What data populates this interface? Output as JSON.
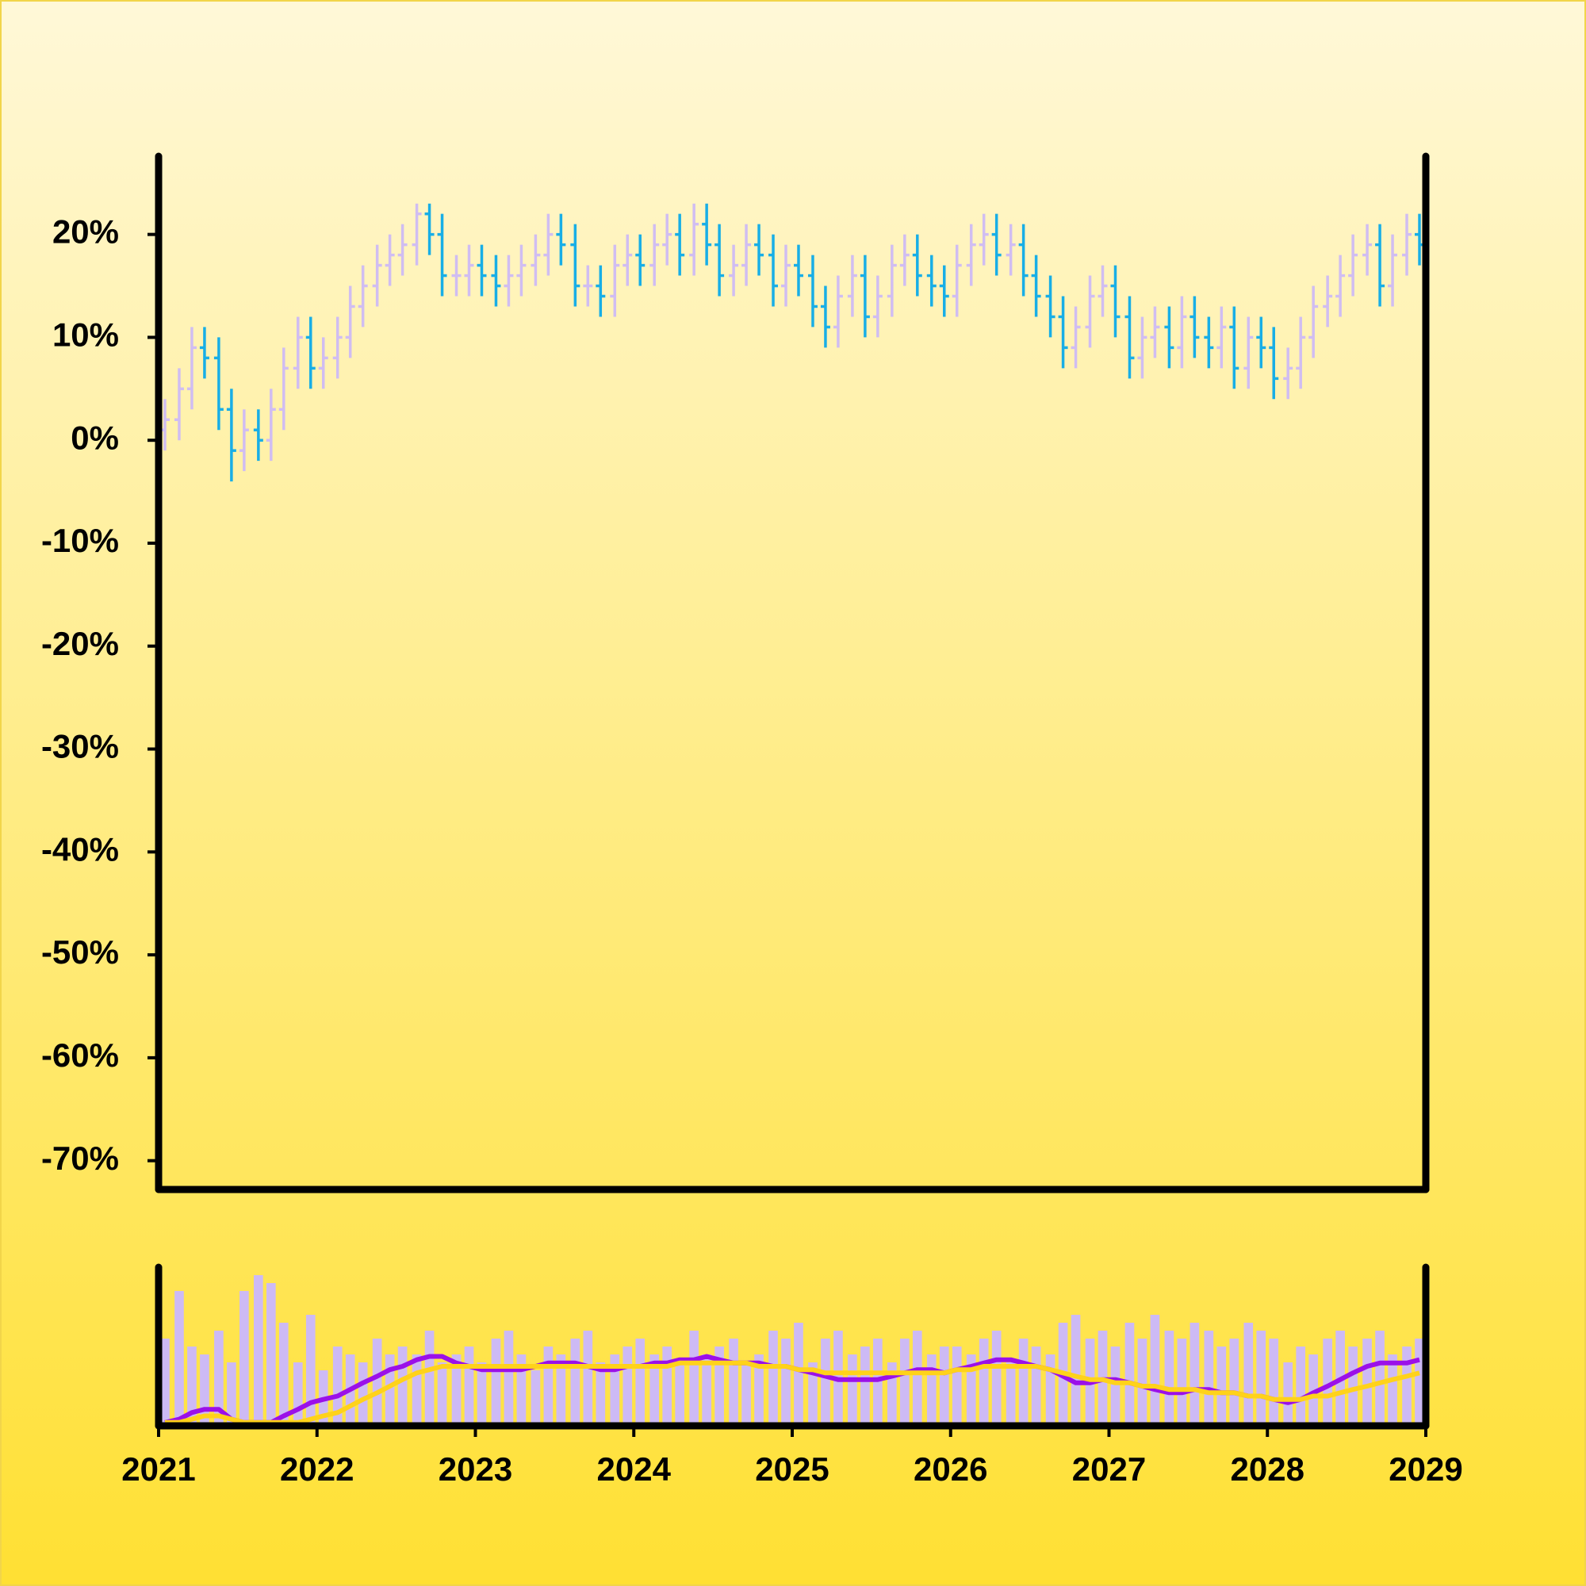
{
  "chart_data": {
    "type": "ohlc",
    "x": [
      2021.04,
      2021.13,
      2021.21,
      2021.29,
      2021.38,
      2021.46,
      2021.54,
      2021.63,
      2021.71,
      2021.79,
      2021.88,
      2021.96,
      2022.04,
      2022.13,
      2022.21,
      2022.29,
      2022.38,
      2022.46,
      2022.54,
      2022.63,
      2022.71,
      2022.79,
      2022.88,
      2022.96,
      2023.04,
      2023.13,
      2023.21,
      2023.29,
      2023.38,
      2023.46,
      2023.54,
      2023.63,
      2023.71,
      2023.79,
      2023.88,
      2023.96,
      2024.04,
      2024.13,
      2024.21,
      2024.29,
      2024.38,
      2024.46,
      2024.54,
      2024.63,
      2024.71,
      2024.79,
      2024.88,
      2024.96,
      2025.04,
      2025.13,
      2025.21,
      2025.29,
      2025.38,
      2025.46,
      2025.54,
      2025.63,
      2025.71,
      2025.79,
      2025.88,
      2025.96,
      2026.04,
      2026.13,
      2026.21,
      2026.29,
      2026.38,
      2026.46,
      2026.54,
      2026.63,
      2026.71,
      2026.79,
      2026.88,
      2026.96,
      2027.04,
      2027.13,
      2027.21,
      2027.29,
      2027.38,
      2027.46,
      2027.54,
      2027.63,
      2027.71,
      2027.79,
      2027.88,
      2027.96,
      2028.04,
      2028.13,
      2028.21,
      2028.29,
      2028.38,
      2028.46,
      2028.54,
      2028.63,
      2028.71,
      2028.79,
      2028.88,
      2028.96
    ],
    "open": [
      1,
      2,
      5,
      9,
      8,
      3,
      -1,
      1,
      0,
      3,
      7,
      10,
      7,
      8,
      10,
      13,
      15,
      17,
      18,
      19,
      22,
      20,
      16,
      16,
      17,
      16,
      15,
      16,
      17,
      18,
      20,
      19,
      15,
      15,
      14,
      17,
      18,
      17,
      19,
      20,
      18,
      21,
      19,
      16,
      17,
      19,
      18,
      15,
      17,
      16,
      13,
      11,
      14,
      16,
      12,
      14,
      17,
      18,
      16,
      15,
      14,
      17,
      19,
      20,
      18,
      19,
      16,
      14,
      12,
      9,
      11,
      14,
      15,
      12,
      8,
      10,
      11,
      9,
      12,
      10,
      9,
      11,
      7,
      10,
      9,
      6,
      7,
      10,
      13,
      14,
      16,
      18,
      19,
      15,
      18,
      20
    ],
    "high": [
      4,
      7,
      11,
      11,
      10,
      5,
      3,
      3,
      5,
      9,
      12,
      12,
      10,
      12,
      15,
      17,
      19,
      20,
      21,
      23,
      23,
      22,
      18,
      19,
      19,
      18,
      18,
      19,
      20,
      22,
      22,
      21,
      17,
      17,
      19,
      20,
      20,
      21,
      22,
      22,
      23,
      23,
      21,
      19,
      21,
      21,
      20,
      19,
      19,
      18,
      15,
      16,
      18,
      18,
      16,
      19,
      20,
      20,
      18,
      17,
      19,
      21,
      22,
      22,
      21,
      21,
      18,
      16,
      14,
      13,
      16,
      17,
      17,
      14,
      12,
      13,
      13,
      14,
      14,
      12,
      13,
      13,
      12,
      12,
      11,
      9,
      12,
      15,
      16,
      18,
      20,
      21,
      21,
      20,
      22,
      22
    ],
    "low": [
      -1,
      0,
      3,
      6,
      1,
      -4,
      -3,
      -2,
      -2,
      1,
      5,
      5,
      5,
      6,
      8,
      11,
      13,
      15,
      16,
      17,
      18,
      14,
      14,
      14,
      14,
      13,
      13,
      14,
      15,
      16,
      17,
      13,
      13,
      12,
      12,
      15,
      15,
      15,
      17,
      16,
      16,
      17,
      14,
      14,
      15,
      16,
      13,
      13,
      14,
      11,
      9,
      9,
      12,
      10,
      10,
      12,
      15,
      14,
      13,
      12,
      12,
      15,
      17,
      16,
      16,
      14,
      12,
      10,
      7,
      7,
      9,
      12,
      10,
      6,
      6,
      8,
      7,
      7,
      8,
      7,
      7,
      5,
      5,
      7,
      4,
      4,
      5,
      8,
      11,
      12,
      14,
      16,
      13,
      13,
      16,
      17
    ],
    "close": [
      2,
      5,
      9,
      8,
      3,
      -1,
      1,
      0,
      3,
      7,
      10,
      7,
      8,
      10,
      13,
      15,
      17,
      18,
      19,
      22,
      20,
      16,
      16,
      17,
      16,
      15,
      16,
      17,
      18,
      20,
      19,
      15,
      15,
      14,
      17,
      18,
      17,
      19,
      20,
      18,
      21,
      19,
      16,
      17,
      19,
      18,
      15,
      17,
      16,
      13,
      11,
      14,
      16,
      12,
      14,
      17,
      18,
      16,
      15,
      14,
      17,
      19,
      20,
      18,
      19,
      16,
      14,
      12,
      9,
      11,
      14,
      15,
      12,
      8,
      10,
      11,
      9,
      12,
      10,
      9,
      11,
      7,
      10,
      9,
      6,
      7,
      10,
      13,
      14,
      16,
      18,
      19,
      15,
      18,
      20,
      19
    ],
    "up_color": "#d0bdf2",
    "down_color": "#18aee6",
    "xlim": [
      2021,
      2029
    ],
    "xticks": [
      2021,
      2022,
      2023,
      2024,
      2025,
      2026,
      2027,
      2028,
      2029
    ],
    "ylim": [
      -72.8,
      27.6
    ],
    "yticks": [
      {
        "value": 20,
        "label": "20%"
      },
      {
        "value": 10,
        "label": "10%"
      },
      {
        "value": 0,
        "label": "0%"
      },
      {
        "value": -10,
        "label": "-10%"
      },
      {
        "value": -20,
        "label": "-20%"
      },
      {
        "value": -30,
        "label": "-30%"
      },
      {
        "value": -40,
        "label": "-40%"
      },
      {
        "value": -50,
        "label": "-50%"
      },
      {
        "value": -60,
        "label": "-60%"
      },
      {
        "value": -70,
        "label": "-70%"
      }
    ],
    "volume": {
      "color": "#cdbaf5",
      "ylim": [
        0,
        100
      ],
      "values": [
        55,
        85,
        50,
        45,
        60,
        40,
        85,
        95,
        90,
        65,
        40,
        70,
        35,
        50,
        45,
        40,
        55,
        45,
        50,
        45,
        60,
        40,
        45,
        50,
        40,
        55,
        60,
        45,
        35,
        50,
        45,
        55,
        60,
        40,
        45,
        50,
        55,
        45,
        50,
        40,
        60,
        45,
        50,
        55,
        40,
        45,
        60,
        55,
        65,
        40,
        55,
        60,
        45,
        50,
        55,
        40,
        55,
        60,
        45,
        50,
        50,
        45,
        55,
        60,
        40,
        55,
        50,
        45,
        65,
        70,
        55,
        60,
        50,
        65,
        55,
        70,
        60,
        55,
        65,
        60,
        50,
        55,
        65,
        60,
        55,
        40,
        50,
        45,
        55,
        60,
        50,
        55,
        60,
        45,
        50,
        55
      ]
    },
    "moving_average_ylim": [
      -1,
      47
    ],
    "moving_averages": [
      {
        "color": "#9b10e8",
        "values": [
          0,
          1,
          3,
          4,
          4,
          1,
          0,
          0,
          0,
          2,
          4,
          6,
          7,
          8,
          10,
          12,
          14,
          16,
          17,
          19,
          20,
          20,
          18,
          17,
          16,
          16,
          16,
          16,
          17,
          18,
          18,
          18,
          17,
          16,
          16,
          17,
          17,
          18,
          18,
          19,
          19,
          20,
          19,
          18,
          18,
          18,
          17,
          17,
          16,
          15,
          14,
          13,
          13,
          13,
          13,
          14,
          15,
          16,
          16,
          15,
          16,
          17,
          18,
          19,
          19,
          18,
          17,
          16,
          14,
          12,
          12,
          13,
          13,
          12,
          11,
          10,
          9,
          9,
          10,
          10,
          9,
          9,
          8,
          8,
          7,
          6,
          7,
          9,
          11,
          13,
          15,
          17,
          18,
          18,
          18,
          19
        ]
      },
      {
        "color": "#ffd21a",
        "values": [
          0,
          0,
          1,
          2,
          2,
          1,
          0,
          0,
          0,
          0,
          0,
          1,
          2,
          3,
          5,
          7,
          9,
          11,
          13,
          15,
          16,
          17,
          17,
          17,
          17,
          17,
          17,
          17,
          17,
          17,
          17,
          17,
          17,
          17,
          17,
          17,
          17,
          17,
          17,
          18,
          18,
          18,
          18,
          18,
          18,
          17,
          17,
          17,
          16,
          16,
          15,
          15,
          15,
          15,
          15,
          15,
          15,
          15,
          15,
          15,
          16,
          16,
          17,
          17,
          17,
          17,
          17,
          16,
          15,
          14,
          13,
          13,
          12,
          12,
          11,
          11,
          10,
          10,
          10,
          9,
          9,
          9,
          8,
          8,
          7,
          7,
          7,
          8,
          8,
          9,
          10,
          11,
          12,
          13,
          14,
          15
        ]
      }
    ]
  }
}
